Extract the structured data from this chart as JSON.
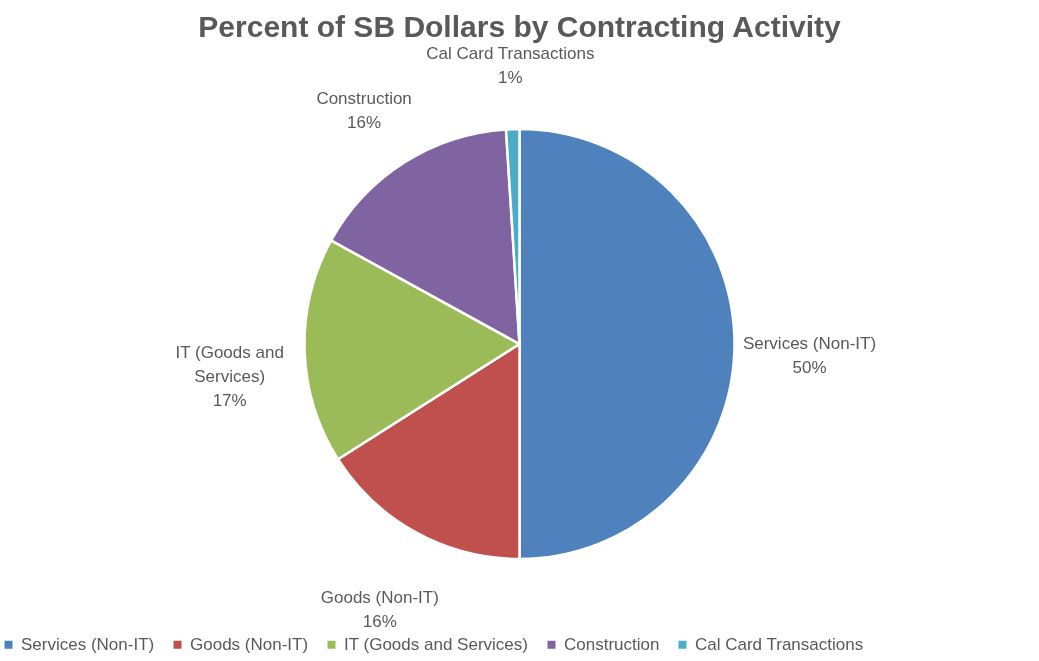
{
  "chart_data": {
    "type": "pie",
    "title": "Percent of SB Dollars by Contracting Activity",
    "categories": [
      "Services (Non-IT)",
      "Goods (Non-IT)",
      "IT (Goods and Services)",
      "Construction",
      "Cal Card Transactions"
    ],
    "values": [
      50,
      16,
      17,
      16,
      1
    ],
    "value_labels": [
      "50%",
      "16%",
      "17%",
      "16%",
      "1%"
    ],
    "colors": [
      "#4f81bd",
      "#c0504d",
      "#9bbb59",
      "#8064a2",
      "#4bacc6"
    ],
    "legend": "bottom"
  }
}
